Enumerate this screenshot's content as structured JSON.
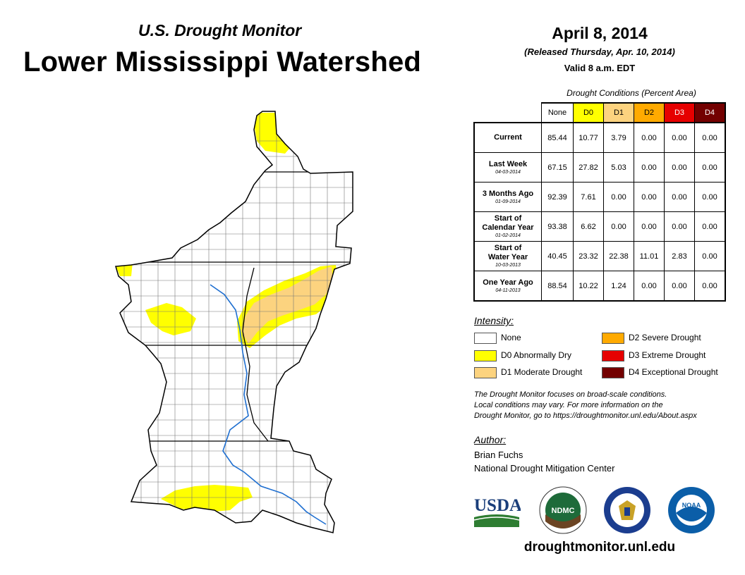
{
  "header": {
    "subtitle": "U.S. Drought Monitor",
    "title": "Lower Mississippi Watershed",
    "date": "April 8, 2014",
    "released": "(Released Thursday, Apr. 10, 2014)",
    "valid": "Valid 8 a.m. EDT"
  },
  "table": {
    "title": "Drought Conditions (Percent Area)",
    "columns": [
      "None",
      "D0",
      "D1",
      "D2",
      "D3",
      "D4"
    ],
    "column_colors": [
      "#ffffff",
      "#ffff00",
      "#fcd37f",
      "#ffaa00",
      "#e60000",
      "#730000"
    ],
    "column_text_colors": [
      "#000000",
      "#000000",
      "#000000",
      "#000000",
      "#ffffff",
      "#ffffff"
    ],
    "rows": [
      {
        "label": "Current",
        "label2": "",
        "date": "",
        "values": [
          "85.44",
          "10.77",
          "3.79",
          "0.00",
          "0.00",
          "0.00"
        ]
      },
      {
        "label": "Last Week",
        "label2": "",
        "date": "04-03-2014",
        "values": [
          "67.15",
          "27.82",
          "5.03",
          "0.00",
          "0.00",
          "0.00"
        ]
      },
      {
        "label": "3 Months Ago",
        "label2": "",
        "date": "01-09-2014",
        "values": [
          "92.39",
          "7.61",
          "0.00",
          "0.00",
          "0.00",
          "0.00"
        ]
      },
      {
        "label": "Start of",
        "label2": "Calendar Year",
        "date": "01-02-2014",
        "values": [
          "93.38",
          "6.62",
          "0.00",
          "0.00",
          "0.00",
          "0.00"
        ]
      },
      {
        "label": "Start of",
        "label2": "Water Year",
        "date": "10-03-2013",
        "values": [
          "40.45",
          "23.32",
          "22.38",
          "11.01",
          "2.83",
          "0.00"
        ]
      },
      {
        "label": "One Year Ago",
        "label2": "",
        "date": "04-11-2013",
        "values": [
          "88.54",
          "10.22",
          "1.24",
          "0.00",
          "0.00",
          "0.00"
        ]
      }
    ]
  },
  "legend": {
    "title": "Intensity:",
    "items": [
      {
        "label": "None",
        "color": "#ffffff"
      },
      {
        "label": "D0 Abnormally Dry",
        "color": "#ffff00"
      },
      {
        "label": "D1 Moderate Drought",
        "color": "#fcd37f"
      },
      {
        "label": "D2 Severe Drought",
        "color": "#ffaa00"
      },
      {
        "label": "D3 Extreme Drought",
        "color": "#e60000"
      },
      {
        "label": "D4 Exceptional Drought",
        "color": "#730000"
      }
    ]
  },
  "note": {
    "line1": "The Drought Monitor focuses on broad-scale conditions.",
    "line2": "Local conditions may vary. For more information on the",
    "line3": "Drought Monitor, go to https://droughtmonitor.unl.edu/About.aspx"
  },
  "author": {
    "title": "Author:",
    "name": "Brian Fuchs",
    "org": "National Drought Mitigation Center"
  },
  "logos": {
    "usda": "USDA",
    "ndmc": "NDMC",
    "noaa": "NOAA",
    "commerce_icon": "department-of-commerce-seal-icon"
  },
  "website": "droughtmonitor.unl.edu",
  "map": {
    "region": "Lower Mississippi Watershed",
    "colors": {
      "d0": "#ffff00",
      "d1": "#fcd37f",
      "outline": "#000000",
      "county": "#555555",
      "river": "#1f6fd0"
    }
  }
}
